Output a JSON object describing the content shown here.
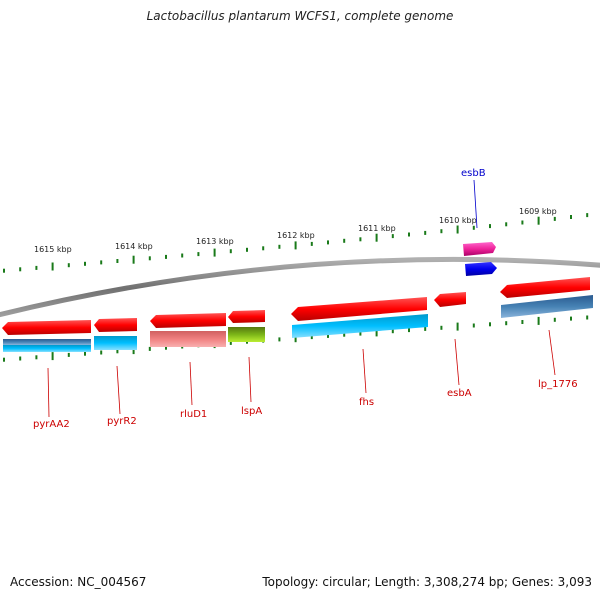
{
  "title": "Lactobacillus plantarum WCFS1, complete genome",
  "footer": {
    "accession": "Accession: NC_004567",
    "summary": "Topology: circular; Length: 3,308,274 bp; Genes: 3,093"
  },
  "scale": {
    "unit": "kbp",
    "labels": [
      "1615 kbp",
      "1614 kbp",
      "1613 kbp",
      "1612 kbp",
      "1611 kbp",
      "1610 kbp",
      "1609 kbp"
    ]
  },
  "genes": {
    "forward": [
      {
        "name": "esbB",
        "color": "#ee2299"
      }
    ],
    "reverse": [
      {
        "name": "pyrAA2",
        "color": "#ff0000"
      },
      {
        "name": "pyrR2",
        "color": "#ff0000"
      },
      {
        "name": "rluD1",
        "color": "#ff0000"
      },
      {
        "name": "lspA",
        "color": "#ff0000"
      },
      {
        "name": "fhs",
        "color": "#ff0000"
      },
      {
        "name": "esbA",
        "color": "#ff0000"
      },
      {
        "name": "lp_1776",
        "color": "#ff0000"
      }
    ]
  },
  "colors": {
    "backbone": "#808080",
    "tick": "#1a7a1a",
    "forward_label": "#0000cc",
    "reverse_label": "#cc0000",
    "cog_blue": "#1e90ff",
    "cog_cyan": "#00bfff",
    "cog_steel": "#4682b4",
    "cog_salmon": "#f08080",
    "cog_olive": "#7cb518",
    "cog_dark_blue": "#0000ee"
  }
}
